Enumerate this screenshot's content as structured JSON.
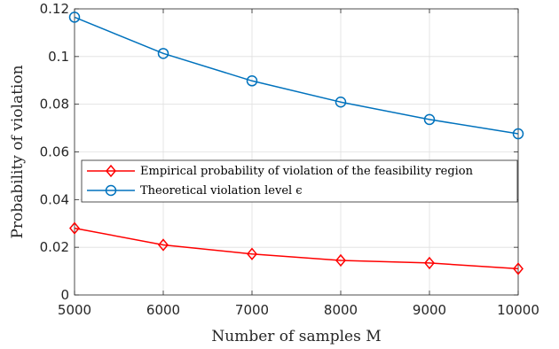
{
  "chart_data": {
    "type": "line",
    "xlabel": "Number of samples M",
    "ylabel": "Probability of violation",
    "xlim": [
      5000,
      10000
    ],
    "ylim": [
      0,
      0.12
    ],
    "x": [
      5000,
      6000,
      7000,
      8000,
      9000,
      10000
    ],
    "xticks": [
      "5000",
      "6000",
      "7000",
      "8000",
      "9000",
      "10000"
    ],
    "yticks": [
      "0",
      "0.02",
      "0.04",
      "0.06",
      "0.08",
      "0.1",
      "0.12"
    ],
    "grid": true,
    "legend_position": "middle-right",
    "series": [
      {
        "name": "Empirical probability of violation of the feasibility region",
        "values": [
          0.028,
          0.021,
          0.0172,
          0.0145,
          0.0134,
          0.011
        ],
        "color": "#ff0000",
        "marker": "diamond"
      },
      {
        "name": "Theoretical violation level ϵ",
        "values": [
          0.1165,
          0.1013,
          0.0898,
          0.0809,
          0.0736,
          0.0676
        ],
        "color": "#0072bd",
        "marker": "circle"
      }
    ]
  }
}
